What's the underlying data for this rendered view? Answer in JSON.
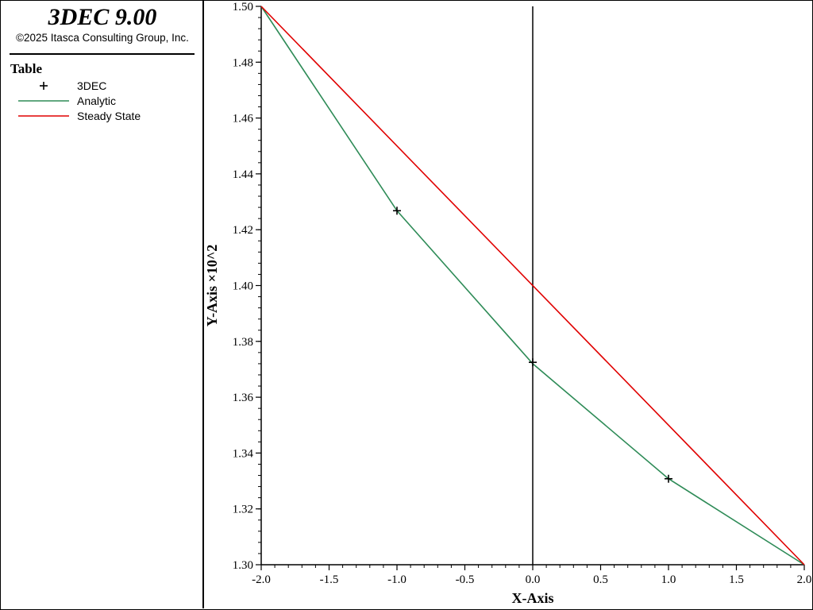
{
  "header": {
    "app_title": "3DEC 9.00",
    "copyright": "©2025 Itasca Consulting Group, Inc."
  },
  "legend": {
    "title": "Table",
    "items": [
      {
        "label": "3DEC",
        "symbol": "plus",
        "color": "#000000"
      },
      {
        "label": "Analytic",
        "symbol": "line",
        "color": "#2e8b57"
      },
      {
        "label": "Steady State",
        "symbol": "line",
        "color": "#e00000"
      }
    ]
  },
  "chart_data": {
    "type": "line",
    "xlabel": "X-Axis",
    "ylabel": "Y-Axis ×10^2",
    "xlim": [
      -2.0,
      2.0
    ],
    "ylim": [
      1.3,
      1.5
    ],
    "x_ticks": [
      "-2.0",
      "-1.5",
      "-1.0",
      "-0.5",
      "0.0",
      "0.5",
      "1.0",
      "1.5",
      "2.0"
    ],
    "y_ticks": [
      "1.30",
      "1.32",
      "1.34",
      "1.36",
      "1.38",
      "1.40",
      "1.42",
      "1.44",
      "1.46",
      "1.48",
      "1.50"
    ],
    "series": [
      {
        "name": "3DEC",
        "style": "markers",
        "color": "#000000",
        "x": [
          -1.0,
          0.0,
          1.0
        ],
        "y": [
          1.4268,
          1.3725,
          1.3308
        ]
      },
      {
        "name": "Analytic",
        "style": "line",
        "color": "#2e8b57",
        "x": [
          -2.0,
          -1.0,
          0.0,
          1.0,
          2.0
        ],
        "y": [
          1.5,
          1.4268,
          1.372,
          1.3308,
          1.3
        ]
      },
      {
        "name": "Steady State",
        "style": "line",
        "color": "#e00000",
        "x": [
          -2.0,
          2.0
        ],
        "y": [
          1.5,
          1.3
        ]
      }
    ],
    "vertical_line_x": 0.0
  }
}
